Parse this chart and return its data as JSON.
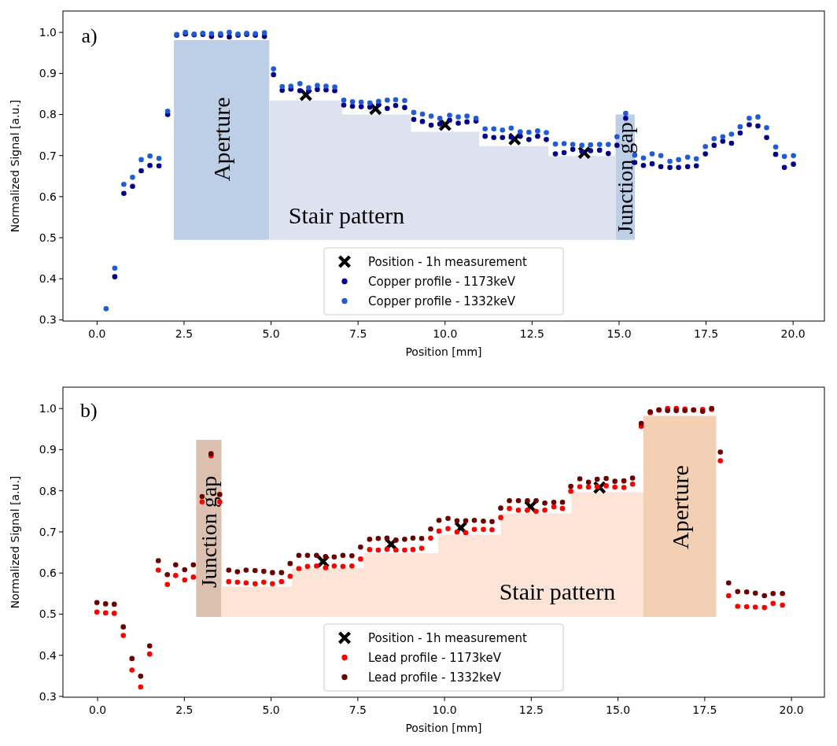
{
  "chart_data": [
    {
      "type": "scatter",
      "xlabel": "Position [mm]",
      "ylabel": "Normalized Signal [a.u.]",
      "annotations": [
        "a)",
        "Aperture",
        "Stair pattern",
        "Junction gap"
      ],
      "x": [
        0.26,
        0.51,
        0.77,
        1.02,
        1.27,
        1.52,
        1.78,
        2.03,
        2.29,
        2.54,
        2.79,
        3.04,
        3.29,
        3.55,
        3.8,
        4.05,
        4.3,
        4.55,
        4.81,
        5.07,
        5.32,
        5.57,
        5.83,
        6.08,
        6.33,
        6.58,
        6.83,
        7.09,
        7.34,
        7.59,
        7.84,
        8.09,
        8.34,
        8.58,
        8.84,
        9.1,
        9.35,
        9.6,
        9.85,
        10.13,
        10.38,
        10.63,
        10.89,
        11.15,
        11.4,
        11.65,
        11.9,
        12.16,
        12.41,
        12.66,
        12.91,
        13.17,
        13.42,
        13.67,
        13.93,
        14.18,
        14.44,
        14.69,
        14.94,
        15.19,
        15.45,
        15.7,
        15.95,
        16.2,
        16.46,
        16.71,
        16.97,
        17.22,
        17.48,
        17.73,
        17.98,
        18.23,
        18.48,
        18.74,
        18.99,
        19.24,
        19.5,
        19.75,
        20.01
      ],
      "series": [
        {
          "name": "Position - 1h measurement",
          "color": "#000000",
          "marker": "cross",
          "x": [
            6,
            8,
            10,
            12,
            14
          ],
          "values": [
            0.848,
            0.814,
            0.775,
            0.74,
            0.707
          ]
        },
        {
          "name": "Copper profile - 1173keV",
          "color": "#00008b",
          "values": [
            null,
            0.405,
            0.608,
            0.625,
            0.663,
            0.676,
            0.675,
            0.8,
            0.993,
            0.996,
            0.994,
            0.995,
            0.99,
            0.993,
            0.989,
            0.993,
            0.995,
            0.993,
            0.99,
            0.897,
            0.859,
            0.862,
            0.858,
            0.857,
            0.861,
            0.86,
            0.858,
            0.823,
            0.82,
            0.819,
            0.818,
            0.824,
            0.815,
            0.822,
            0.817,
            0.788,
            0.783,
            0.774,
            0.777,
            0.786,
            0.779,
            0.782,
            0.784,
            0.747,
            0.744,
            0.744,
            0.745,
            0.747,
            0.739,
            0.747,
            0.739,
            0.704,
            0.707,
            0.715,
            0.71,
            0.712,
            0.713,
            0.705,
            0.725,
            0.791,
            0.683,
            0.676,
            0.68,
            0.673,
            0.671,
            0.671,
            0.673,
            0.675,
            0.704,
            0.725,
            0.735,
            0.73,
            0.755,
            0.775,
            0.772,
            0.744,
            0.703,
            0.671,
            0.679
          ]
        },
        {
          "name": "Copper profile - 1332keV",
          "color": "#1f5bd6",
          "values": [
            0.327,
            0.426,
            0.63,
            0.647,
            0.69,
            0.699,
            0.693,
            0.808,
            0.995,
            1.0,
            0.996,
            0.998,
            0.997,
            0.997,
            1.0,
            0.996,
            0.998,
            0.997,
            0.999,
            0.911,
            0.868,
            0.869,
            0.875,
            0.865,
            0.871,
            0.869,
            0.867,
            0.835,
            0.831,
            0.83,
            0.828,
            0.832,
            0.835,
            0.836,
            0.834,
            0.805,
            0.801,
            0.796,
            0.791,
            0.798,
            0.794,
            0.796,
            0.791,
            0.765,
            0.765,
            0.762,
            0.767,
            0.758,
            0.757,
            0.76,
            0.756,
            0.728,
            0.729,
            0.727,
            0.725,
            0.726,
            0.727,
            0.727,
            0.746,
            0.803,
            0.701,
            0.694,
            0.704,
            0.7,
            0.686,
            0.69,
            0.696,
            0.692,
            0.722,
            0.741,
            0.746,
            0.752,
            0.77,
            0.791,
            0.794,
            0.768,
            0.721,
            0.698,
            0.7
          ]
        }
      ],
      "marker": "circle",
      "grid": false,
      "legend": "bottom",
      "xlim": [
        -0.98,
        20.9
      ],
      "ylim": [
        0.297,
        1.052
      ],
      "xticks": [
        {
          "value": 0,
          "label": "0.0"
        },
        2.5,
        {
          "value": 5,
          "label": "5.0"
        },
        7.5,
        {
          "value": 10,
          "label": "10.0"
        },
        12.5,
        {
          "value": 15,
          "label": "15.0"
        },
        17.5,
        {
          "value": 20,
          "label": "20.0"
        }
      ],
      "yticks": [
        0.3,
        0.4,
        0.5,
        0.6,
        0.7,
        0.8,
        0.9,
        {
          "value": 1,
          "label": "1.0"
        }
      ]
    },
    {
      "type": "scatter",
      "xlabel": "Position [mm]",
      "ylabel": "Normalized Signal [a.u.]",
      "annotations": [
        "b)",
        "Junction gap",
        "Stair pattern",
        "Aperture"
      ],
      "x": [
        -0.02,
        0.23,
        0.48,
        0.74,
        0.99,
        1.24,
        1.5,
        1.75,
        2.01,
        2.25,
        2.51,
        2.76,
        3.01,
        3.27,
        3.52,
        3.78,
        4.03,
        4.28,
        4.54,
        4.79,
        5.04,
        5.3,
        5.55,
        5.8,
        6.05,
        6.31,
        6.57,
        6.82,
        7.07,
        7.33,
        7.58,
        7.84,
        8.09,
        8.34,
        8.6,
        8.85,
        9.09,
        9.34,
        9.6,
        9.84,
        10.1,
        10.36,
        10.61,
        10.86,
        11.12,
        11.37,
        11.62,
        11.87,
        12.13,
        12.39,
        12.64,
        12.89,
        13.15,
        13.4,
        13.64,
        13.9,
        14.15,
        14.4,
        14.66,
        14.91,
        15.17,
        15.42,
        15.67,
        15.93,
        16.18,
        16.43,
        16.68,
        16.93,
        17.18,
        17.44,
        17.7,
        17.95,
        18.19,
        18.45,
        18.71,
        18.96,
        19.22,
        19.47,
        19.74
      ],
      "series": [
        {
          "name": "Position - 1h measurement",
          "color": "#000000",
          "marker": "cross",
          "x": [
            6.5,
            8.46,
            10.47,
            12.48,
            14.47
          ],
          "values": [
            0.628,
            0.67,
            0.71,
            0.761,
            0.808
          ]
        },
        {
          "name": "Lead profile - 1173keV",
          "color": "#ff0000",
          "values": [
            0.505,
            0.503,
            0.502,
            0.448,
            0.364,
            0.323,
            0.403,
            0.607,
            0.572,
            0.594,
            0.583,
            0.59,
            0.773,
            0.885,
            0.773,
            0.579,
            0.578,
            0.576,
            0.574,
            0.578,
            0.574,
            0.579,
            0.592,
            0.611,
            0.616,
            0.617,
            0.613,
            0.617,
            0.616,
            0.617,
            0.634,
            0.657,
            0.656,
            0.658,
            0.656,
            0.656,
            0.657,
            0.66,
            0.685,
            0.702,
            0.708,
            0.7,
            0.698,
            0.706,
            0.706,
            0.705,
            0.735,
            0.757,
            0.753,
            0.753,
            0.75,
            0.753,
            0.761,
            0.757,
            0.799,
            0.81,
            0.809,
            0.81,
            0.812,
            0.809,
            0.808,
            0.816,
            0.957,
            0.99,
            0.996,
            1.0,
            1.0,
            0.999,
            0.996,
            0.998,
            0.998,
            0.873,
            0.545,
            0.519,
            0.518,
            0.517,
            0.516,
            0.526,
            0.522
          ]
        },
        {
          "name": "Lead profile - 1332keV",
          "color": "#6b0000",
          "values": [
            0.528,
            0.525,
            0.524,
            0.469,
            0.392,
            0.349,
            0.423,
            0.63,
            0.596,
            0.62,
            0.608,
            0.62,
            0.786,
            0.89,
            0.791,
            0.607,
            0.603,
            0.607,
            0.606,
            0.604,
            0.601,
            0.601,
            0.623,
            0.643,
            0.643,
            0.643,
            0.64,
            0.639,
            0.643,
            0.642,
            0.663,
            0.682,
            0.684,
            0.685,
            0.68,
            0.682,
            0.685,
            0.684,
            0.707,
            0.728,
            0.733,
            0.727,
            0.727,
            0.728,
            0.726,
            0.725,
            0.758,
            0.776,
            0.776,
            0.776,
            0.776,
            0.77,
            0.772,
            0.772,
            0.811,
            0.829,
            0.821,
            0.828,
            0.83,
            0.823,
            0.824,
            0.831,
            0.964,
            0.992,
            0.997,
            0.995,
            0.995,
            0.995,
            0.997,
            0.993,
            1.0,
            0.894,
            0.576,
            0.555,
            0.554,
            0.551,
            0.545,
            0.55,
            0.55
          ]
        }
      ],
      "marker": "circle",
      "grid": false,
      "legend": "bottom",
      "xlim": [
        -1.0,
        20.95
      ],
      "ylim": [
        0.298,
        1.052
      ],
      "xticks": [
        {
          "value": 0,
          "label": "0.0"
        },
        2.5,
        {
          "value": 5,
          "label": "5.0"
        },
        7.5,
        {
          "value": 10,
          "label": "10.0"
        },
        12.5,
        {
          "value": 15,
          "label": "15.0"
        },
        17.5,
        {
          "value": 20,
          "label": "20.0"
        }
      ],
      "yticks": [
        0.3,
        0.4,
        0.5,
        0.6,
        0.7,
        0.8,
        0.9,
        {
          "value": 1,
          "label": "1.0"
        }
      ]
    }
  ]
}
